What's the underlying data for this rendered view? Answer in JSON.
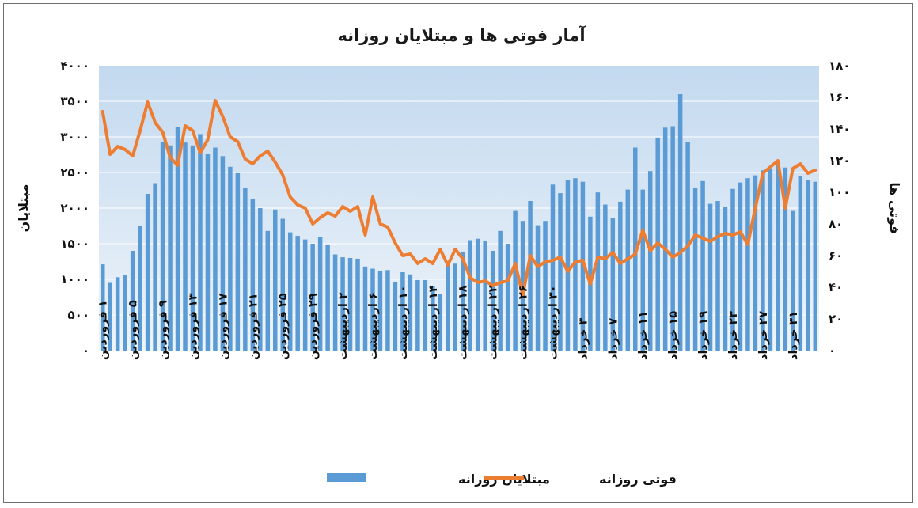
{
  "chart_data": {
    "type": "bar+line",
    "title": "آمار فوتی ها و مبتلایان روزانه",
    "ylabel_left": "مبتلایان",
    "ylabel_right": "فوتی ها",
    "ylim_left": [
      0,
      4000
    ],
    "ylim_right": [
      0,
      180
    ],
    "yticks_left": [
      "۰",
      "۵۰۰",
      "۱۰۰۰",
      "۱۵۰۰",
      "۲۰۰۰",
      "۲۵۰۰",
      "۳۰۰۰",
      "۳۵۰۰",
      "۴۰۰۰"
    ],
    "yticks_right": [
      "۰",
      "۲۰",
      "۴۰",
      "۶۰",
      "۸۰",
      "۱۰۰",
      "۱۲۰",
      "۱۴۰",
      "۱۶۰",
      "۱۸۰"
    ],
    "x_tick_labels": [
      "۱ فروردین",
      "۵ فروردین",
      "۹ فروردین",
      "۱۳ فروردین",
      "۱۷ فروردین",
      "۲۱ فروردین",
      "۲۵ فروردین",
      "۲۹ فروردین",
      "۲ اردیبهشت",
      "۶ اردیبهشت",
      "۱۰ اردیبهشت",
      "۱۴ اردیبهشت",
      "۱۸ اردیبهشت",
      "۲۲ اردیبهشت",
      "۲۶ اردیبهشت",
      "۳۰ اردیبهشت",
      "۳ خرداد",
      "۷ خرداد",
      "۱۱ خرداد",
      "۱۵ خرداد",
      "۱۹ خرداد",
      "۲۳ خرداد",
      "۲۷ خرداد",
      "۳۱ خرداد"
    ],
    "series": [
      {
        "name": "مبتلایان روزانه",
        "type": "bar",
        "axis": "left",
        "color": "#5b9bd5",
        "values": [
          1210,
          950,
          1030,
          1060,
          1400,
          1750,
          2200,
          2350,
          2930,
          2880,
          3140,
          2920,
          2880,
          3040,
          2760,
          2850,
          2730,
          2580,
          2490,
          2280,
          2130,
          2000,
          1680,
          1980,
          1850,
          1660,
          1610,
          1560,
          1500,
          1590,
          1490,
          1350,
          1310,
          1300,
          1290,
          1180,
          1150,
          1120,
          1130,
          960,
          1100,
          1070,
          990,
          990,
          910,
          790,
          1200,
          1220,
          1390,
          1550,
          1570,
          1540,
          1400,
          1680,
          1500,
          1960,
          1820,
          2100,
          1760,
          1820,
          2330,
          2210,
          2390,
          2420,
          2370,
          1880,
          2220,
          2050,
          1860,
          2090,
          2260,
          2850,
          2260,
          2520,
          2990,
          3130,
          3150,
          3600,
          2930,
          2280,
          2380,
          2060,
          2100,
          2020,
          2270,
          2360,
          2420,
          2460,
          2530,
          2550,
          2620,
          2570,
          1960,
          2450,
          2390,
          2370
        ]
      },
      {
        "name": "فوتی روزانه",
        "type": "line",
        "axis": "right",
        "color": "#ed7d31",
        "values": [
          151,
          124,
          129,
          127,
          123,
          139,
          157,
          144,
          138,
          122,
          117,
          142,
          139,
          125,
          133,
          158,
          148,
          135,
          132,
          121,
          118,
          123,
          126,
          119,
          111,
          97,
          92,
          90,
          80,
          84,
          87,
          85,
          91,
          88,
          91,
          73,
          97,
          80,
          78,
          68,
          60,
          61,
          55,
          58,
          55,
          64,
          54,
          64,
          58,
          46,
          43,
          44,
          41,
          43,
          44,
          55,
          35,
          60,
          53,
          56,
          57,
          59,
          50,
          56,
          57,
          42,
          59,
          58,
          62,
          55,
          58,
          61,
          76,
          63,
          68,
          64,
          59,
          62,
          66,
          73,
          71,
          69,
          72,
          74,
          73,
          75,
          67,
          90,
          112,
          116,
          120,
          90,
          115,
          118,
          112,
          114
        ]
      }
    ]
  },
  "legend": {
    "bar_label": "مبتلایان روزانه",
    "line_label": "فوتی روزانه"
  },
  "colors": {
    "plot_background": "#d6e6f5",
    "bar": "#5b9bd5",
    "line": "#ed7d31",
    "gridline": "#ffffff",
    "frame": "#6f6f6f"
  }
}
